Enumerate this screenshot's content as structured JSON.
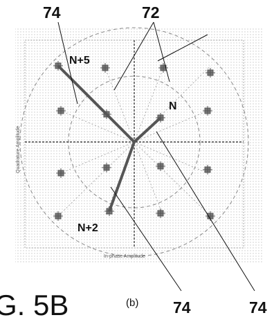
{
  "references": {
    "top_left": "74",
    "top_right": "72",
    "bottom_left": "74",
    "bottom_right": "74"
  },
  "points": {
    "n": "N",
    "n_plus_5": "N+5",
    "n_plus_2": "N+2"
  },
  "plot": {
    "xlabel": "In-phase Amplitude",
    "ylabel": "Quadrature Amplitude"
  },
  "figure": {
    "label": "G. 5B",
    "sub_label": "(b)"
  },
  "colors": {
    "ink": "#111111",
    "vector": "#555555",
    "grid": "#aaaaaa",
    "dashed": "#888888"
  }
}
